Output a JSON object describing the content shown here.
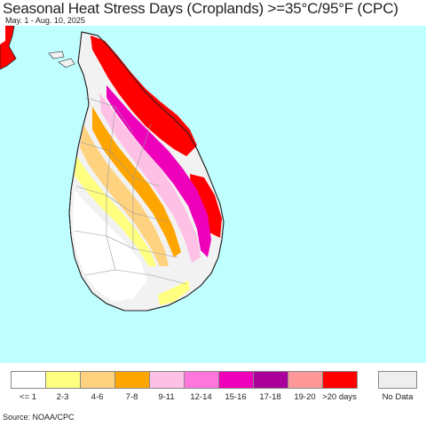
{
  "title": "Seasonal Heat Stress Days (Croplands) >=35°C/95°F (CPC)",
  "subtitle": "May. 1 - Aug. 10, 2025",
  "source": "Source: NOAA/CPC",
  "colors": {
    "ocean": "#bfffff",
    "land": "#f2f2f2",
    "water_boundary": "#222222"
  },
  "legend": {
    "items": [
      {
        "label": "<= 1",
        "color": "#ffffff"
      },
      {
        "label": "2-3",
        "color": "#ffff7f"
      },
      {
        "label": "4-6",
        "color": "#ffd27f"
      },
      {
        "label": "7-8",
        "color": "#ffa500"
      },
      {
        "label": "9-11",
        "color": "#ffc0e6"
      },
      {
        "label": "12-14",
        "color": "#ff77dd"
      },
      {
        "label": "15-16",
        "color": "#ee00bb"
      },
      {
        "label": "17-18",
        "color": "#aa0099"
      },
      {
        "label": "19-20",
        "color": "#ff9999"
      },
      {
        "label": ">20 days",
        "color": "#ff0000"
      }
    ],
    "nodata": {
      "label": "No Data",
      "color": "#eeeeee"
    }
  }
}
